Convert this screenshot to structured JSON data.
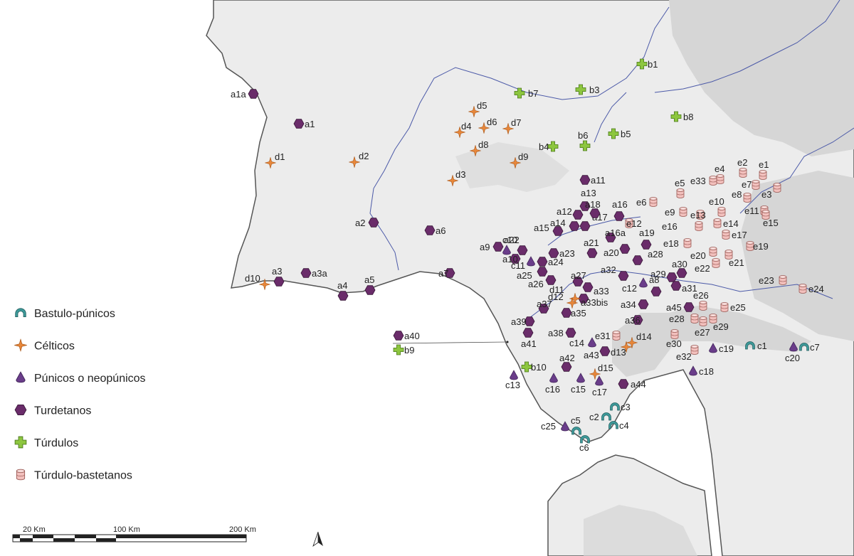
{
  "colors": {
    "bastulo": "#3e9a9a",
    "celticos": "#e8873a",
    "punicos": "#6a3d8a",
    "turdetanos": "#6a2c6a",
    "turdulos": "#8dc63f",
    "turdulo_bastetanos": "#f2c0bd",
    "relief": "#d9d9d9",
    "land": "#e8e8e8",
    "coast": "#555555",
    "river": "#4c5aa8"
  },
  "legend": [
    {
      "key": "bastulo",
      "label": "Bastulo-púnicos",
      "icon": "arch-icon"
    },
    {
      "key": "celticos",
      "label": "Célticos",
      "icon": "star-icon"
    },
    {
      "key": "punicos",
      "label": "Púnicos o neopúnicos",
      "icon": "drop-icon"
    },
    {
      "key": "turdetanos",
      "label": "Turdetanos",
      "icon": "hexagon-icon"
    },
    {
      "key": "turdulos",
      "label": "Túrdulos",
      "icon": "cross-icon"
    },
    {
      "key": "turdulo_bastetanos",
      "label": "Túrdulo-bastetanos",
      "icon": "cylinder-icon"
    }
  ],
  "scale_bar": {
    "labels": [
      "20 Km",
      "100 Km",
      "200 Km"
    ]
  },
  "north_arrow": {
    "icon": "north-arrow-icon"
  },
  "points": {
    "turdetanos": [
      {
        "id": "a1a",
        "label": "a1a"
      },
      {
        "id": "a1",
        "label": "a1"
      },
      {
        "id": "a2",
        "label": "a2"
      },
      {
        "id": "a3",
        "label": "a3"
      },
      {
        "id": "a3a",
        "label": "a3a"
      },
      {
        "id": "a4",
        "label": "a4"
      },
      {
        "id": "a5",
        "label": "a5"
      },
      {
        "id": "a6",
        "label": "a6"
      },
      {
        "id": "a7",
        "label": "a7"
      },
      {
        "id": "a8",
        "label": "a8"
      },
      {
        "id": "a9",
        "label": "a9"
      },
      {
        "id": "a10",
        "label": "a10"
      },
      {
        "id": "a11",
        "label": "a11"
      },
      {
        "id": "a12",
        "label": "a12"
      },
      {
        "id": "a13",
        "label": "a13"
      },
      {
        "id": "a14",
        "label": "a14"
      },
      {
        "id": "a15",
        "label": "a15"
      },
      {
        "id": "a16",
        "label": "a16"
      },
      {
        "id": "a16a",
        "label": "a16a"
      },
      {
        "id": "a17",
        "label": "a17"
      },
      {
        "id": "a18",
        "label": "a18"
      },
      {
        "id": "a19",
        "label": "a19"
      },
      {
        "id": "a20",
        "label": "a20"
      },
      {
        "id": "a21",
        "label": "a21"
      },
      {
        "id": "a22",
        "label": "a22"
      },
      {
        "id": "a23",
        "label": "a23"
      },
      {
        "id": "a24",
        "label": "a24"
      },
      {
        "id": "a25",
        "label": "a25"
      },
      {
        "id": "a26",
        "label": "a26"
      },
      {
        "id": "a27",
        "label": "a27"
      },
      {
        "id": "a28",
        "label": "a28"
      },
      {
        "id": "a29",
        "label": "a29"
      },
      {
        "id": "a30",
        "label": "a30"
      },
      {
        "id": "a31",
        "label": "a31"
      },
      {
        "id": "a32",
        "label": "a32"
      },
      {
        "id": "a33",
        "label": "a33"
      },
      {
        "id": "a33bis",
        "label": "a33bis"
      },
      {
        "id": "a34",
        "label": "a34"
      },
      {
        "id": "a35",
        "label": "a35"
      },
      {
        "id": "a36",
        "label": "a36"
      },
      {
        "id": "a37",
        "label": "a37"
      },
      {
        "id": "a38",
        "label": "a38"
      },
      {
        "id": "a39",
        "label": "a39"
      },
      {
        "id": "a40",
        "label": "a40"
      },
      {
        "id": "a41",
        "label": "a41"
      },
      {
        "id": "a42",
        "label": "a42"
      },
      {
        "id": "a43",
        "label": "a43"
      },
      {
        "id": "a44",
        "label": "a44"
      },
      {
        "id": "a45",
        "label": "a45"
      }
    ],
    "turdulos": [
      {
        "id": "b1",
        "label": "b1"
      },
      {
        "id": "b3",
        "label": "b3"
      },
      {
        "id": "b4",
        "label": "b4"
      },
      {
        "id": "b5",
        "label": "b5"
      },
      {
        "id": "b6",
        "label": "b6"
      },
      {
        "id": "b7",
        "label": "b7"
      },
      {
        "id": "b8",
        "label": "b8"
      },
      {
        "id": "b9",
        "label": "b9"
      },
      {
        "id": "b10",
        "label": "b10"
      }
    ],
    "punicos": [
      {
        "id": "c10",
        "label": "c10"
      },
      {
        "id": "c11",
        "label": "c11"
      },
      {
        "id": "c12",
        "label": "c12"
      },
      {
        "id": "c13",
        "label": "c13"
      },
      {
        "id": "c14",
        "label": "c14"
      },
      {
        "id": "c15",
        "label": "c15"
      },
      {
        "id": "c16",
        "label": "c16"
      },
      {
        "id": "c17",
        "label": "c17"
      },
      {
        "id": "c18",
        "label": "c18"
      },
      {
        "id": "c19",
        "label": "c19"
      },
      {
        "id": "c20",
        "label": "c20"
      },
      {
        "id": "c25",
        "label": "c25"
      }
    ],
    "bastulo": [
      {
        "id": "c1",
        "label": "c1"
      },
      {
        "id": "c2",
        "label": "c2"
      },
      {
        "id": "c3",
        "label": "c3"
      },
      {
        "id": "c4",
        "label": "c4"
      },
      {
        "id": "c5",
        "label": "c5"
      },
      {
        "id": "c6",
        "label": "c6"
      },
      {
        "id": "c7",
        "label": "c7"
      }
    ],
    "celticos": [
      {
        "id": "d1",
        "label": "d1"
      },
      {
        "id": "d2",
        "label": "d2"
      },
      {
        "id": "d3",
        "label": "d3"
      },
      {
        "id": "d4",
        "label": "d4"
      },
      {
        "id": "d5",
        "label": "d5"
      },
      {
        "id": "d6",
        "label": "d6"
      },
      {
        "id": "d7",
        "label": "d7"
      },
      {
        "id": "d8",
        "label": "d8"
      },
      {
        "id": "d9",
        "label": "d9"
      },
      {
        "id": "d10",
        "label": "d10"
      },
      {
        "id": "d11",
        "label": "d11"
      },
      {
        "id": "d12",
        "label": "d12"
      },
      {
        "id": "d13",
        "label": "d13"
      },
      {
        "id": "d14",
        "label": "d14"
      },
      {
        "id": "d15",
        "label": "d15"
      }
    ],
    "turdulo_bastetanos": [
      {
        "id": "e1",
        "label": "e1"
      },
      {
        "id": "e2",
        "label": "e2"
      },
      {
        "id": "e3",
        "label": "e3"
      },
      {
        "id": "e4",
        "label": "e4"
      },
      {
        "id": "e5",
        "label": "e5"
      },
      {
        "id": "e6",
        "label": "e6"
      },
      {
        "id": "e7",
        "label": "e7"
      },
      {
        "id": "e8",
        "label": "e8"
      },
      {
        "id": "e9",
        "label": "e9"
      },
      {
        "id": "e10",
        "label": "e10"
      },
      {
        "id": "e11",
        "label": "e11"
      },
      {
        "id": "e12",
        "label": "e12"
      },
      {
        "id": "e13",
        "label": "e13"
      },
      {
        "id": "e14",
        "label": "e14"
      },
      {
        "id": "e15",
        "label": "e15"
      },
      {
        "id": "e16",
        "label": "e16"
      },
      {
        "id": "e17",
        "label": "e17"
      },
      {
        "id": "e18",
        "label": "e18"
      },
      {
        "id": "e19",
        "label": "e19"
      },
      {
        "id": "e20",
        "label": "e20"
      },
      {
        "id": "e21",
        "label": "e21"
      },
      {
        "id": "e22",
        "label": "e22"
      },
      {
        "id": "e23",
        "label": "e23"
      },
      {
        "id": "e24",
        "label": "e24"
      },
      {
        "id": "e25",
        "label": "e25"
      },
      {
        "id": "e26",
        "label": "e26"
      },
      {
        "id": "e27",
        "label": "e27"
      },
      {
        "id": "e28",
        "label": "e28"
      },
      {
        "id": "e29",
        "label": "e29"
      },
      {
        "id": "e30",
        "label": "e30"
      },
      {
        "id": "e31",
        "label": "e31"
      },
      {
        "id": "e32",
        "label": "e32"
      },
      {
        "id": "e33",
        "label": "e33"
      }
    ]
  }
}
